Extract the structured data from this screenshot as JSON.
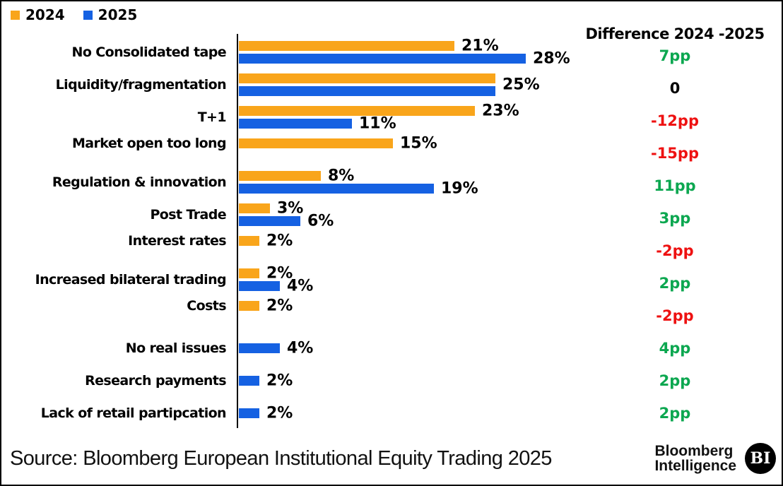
{
  "legend": {
    "items": [
      {
        "label": "2024",
        "color": "#F9A51B"
      },
      {
        "label": "2025",
        "color": "#1561E2"
      }
    ]
  },
  "diff_column": {
    "header": "Difference 2024 -2025",
    "positive_color": "#0CA750",
    "negative_color": "#EE1111",
    "zero_color": "#000000"
  },
  "chart_data": {
    "type": "bar",
    "orientation": "horizontal",
    "unit": "percent",
    "xlim": [
      0,
      30
    ],
    "grid": false,
    "legend_position": "top-left",
    "series_names": [
      "2024",
      "2025"
    ],
    "colors": {
      "s2024": "#F9A51B",
      "s2025": "#1561E2"
    },
    "rows": [
      {
        "category": "No Consolidated tape",
        "v2024": 21,
        "v2025": 28,
        "label2024": "21%",
        "label2025": "28%",
        "diff": "7pp",
        "diff_color": "#0CA750"
      },
      {
        "category": "Liquidity/fragmentation",
        "v2024": 25,
        "v2025": 25,
        "shared_label": "25%",
        "diff": "0",
        "diff_color": "#000000"
      },
      {
        "category": "T+1",
        "v2024": 23,
        "v2025": 11,
        "label2024": "23%",
        "label2025": "11%",
        "diff": "-12pp",
        "diff_color": "#EE1111"
      },
      {
        "category": "Market open too long",
        "v2024": 15,
        "v2025": null,
        "label2024": "15%",
        "diff": "-15pp",
        "diff_color": "#EE1111"
      },
      {
        "category": "Regulation & innovation",
        "v2024": 8,
        "v2025": 19,
        "label2024": "8%",
        "label2025": "19%",
        "diff": "11pp",
        "diff_color": "#0CA750"
      },
      {
        "category": "Post Trade",
        "v2024": 3,
        "v2025": 6,
        "label2024": "3%",
        "label2025": "6%",
        "diff": "3pp",
        "diff_color": "#0CA750"
      },
      {
        "category": "Interest rates",
        "v2024": 2,
        "v2025": null,
        "label2024": "2%",
        "diff": "-2pp",
        "diff_color": "#EE1111"
      },
      {
        "category": "Increased bilateral trading",
        "v2024": 2,
        "v2025": 4,
        "label2024": "2%",
        "label2025": "4%",
        "diff": "2pp",
        "diff_color": "#0CA750"
      },
      {
        "category": "Costs",
        "v2024": 2,
        "v2025": null,
        "label2024": "2%",
        "diff": "-2pp",
        "diff_color": "#EE1111"
      },
      {
        "category": "No real issues",
        "v2024": null,
        "v2025": 4,
        "label2025": "4%",
        "diff": "4pp",
        "diff_color": "#0CA750"
      },
      {
        "category": "Research payments",
        "v2024": null,
        "v2025": 2,
        "label2025": "2%",
        "diff": "2pp",
        "diff_color": "#0CA750"
      },
      {
        "category": "Lack of retail partipcation",
        "v2024": null,
        "v2025": 2,
        "label2025": "2%",
        "diff": "2pp",
        "diff_color": "#0CA750"
      }
    ]
  },
  "footer": {
    "source": "Source: Bloomberg European Institutional Equity Trading 2025",
    "brand_line1": "Bloomberg",
    "brand_line2": "Intelligence",
    "badge": "BI"
  }
}
